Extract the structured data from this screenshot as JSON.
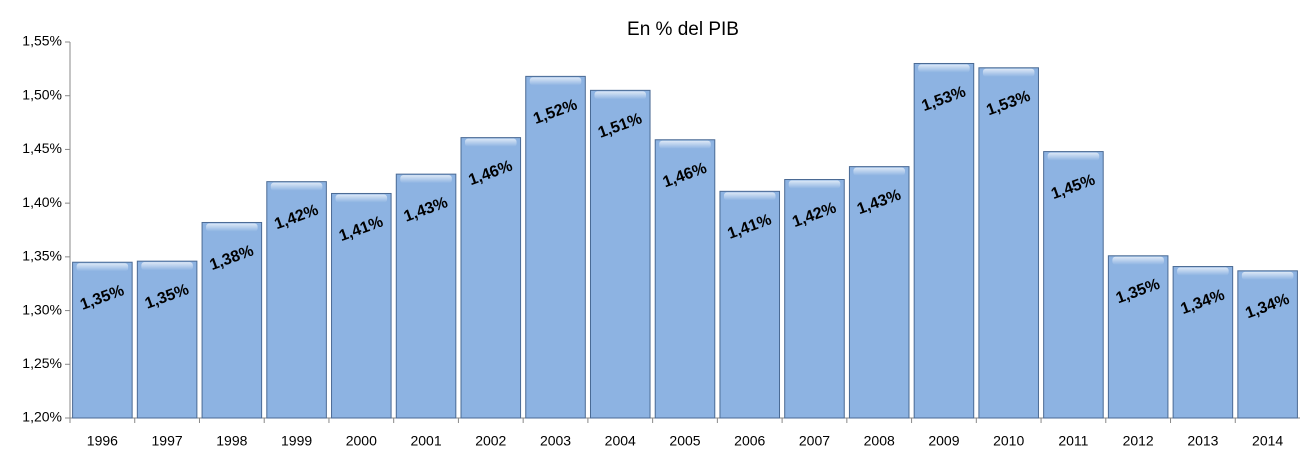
{
  "chart_data": {
    "type": "bar",
    "title": "En % del PIB",
    "categories": [
      "1996",
      "1997",
      "1998",
      "1999",
      "2000",
      "2001",
      "2002",
      "2003",
      "2004",
      "2005",
      "2006",
      "2007",
      "2008",
      "2009",
      "2010",
      "2011",
      "2012",
      "2013",
      "2014"
    ],
    "values": [
      1.345,
      1.346,
      1.382,
      1.42,
      1.409,
      1.427,
      1.461,
      1.518,
      1.505,
      1.459,
      1.411,
      1.422,
      1.434,
      1.53,
      1.526,
      1.448,
      1.351,
      1.341,
      1.337
    ],
    "value_labels": [
      "1,35%",
      "1,35%",
      "1,38%",
      "1,42%",
      "1,41%",
      "1,43%",
      "1,46%",
      "1,52%",
      "1,51%",
      "1,46%",
      "1,41%",
      "1,42%",
      "1,43%",
      "1,53%",
      "1,53%",
      "1,45%",
      "1,35%",
      "1,34%",
      "1,34%"
    ],
    "color": "#8db3e2",
    "ylim": [
      1.2,
      1.55
    ],
    "yticks": [
      {
        "value": 1.2,
        "label": "1,20%"
      },
      {
        "value": 1.25,
        "label": "1,25%"
      },
      {
        "value": 1.3,
        "label": "1,30%"
      },
      {
        "value": 1.35,
        "label": "1,35%"
      },
      {
        "value": 1.4,
        "label": "1,40%"
      },
      {
        "value": 1.45,
        "label": "1,45%"
      },
      {
        "value": 1.5,
        "label": "1,50%"
      },
      {
        "value": 1.55,
        "label": "1,55%"
      }
    ],
    "grid": false
  }
}
